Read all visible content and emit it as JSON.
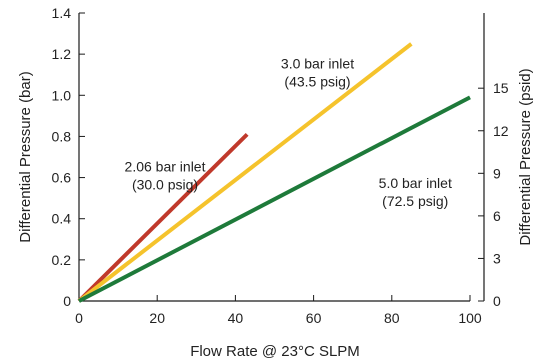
{
  "chart_data": {
    "type": "line",
    "xlabel": "Flow Rate @ 23°C SLPM",
    "ylabel": "Differential Pressure (bar)",
    "y2label": "Differential Pressure (psid)",
    "xlim": [
      0,
      100
    ],
    "ylim": [
      0,
      1.4
    ],
    "y2lim": [
      0,
      20.3
    ],
    "x_ticks": [
      "0",
      "20",
      "40",
      "60",
      "80",
      "100"
    ],
    "x_tick_values": [
      0,
      20,
      40,
      60,
      80,
      100
    ],
    "y_ticks": [
      "0",
      "0.2",
      "0.4",
      "0.6",
      "0.8",
      "1.0",
      "1.2",
      "1.4"
    ],
    "y_tick_values": [
      0,
      0.2,
      0.4,
      0.6,
      0.8,
      1.0,
      1.2,
      1.4
    ],
    "y2_ticks": [
      "0",
      "3",
      "6",
      "9",
      "12",
      "15"
    ],
    "y2_tick_values": [
      0,
      3,
      6,
      9,
      12,
      15
    ],
    "grid": false,
    "series": [
      {
        "color": "#c0392b",
        "x": [
          0,
          43
        ],
        "y": [
          0,
          0.81
        ],
        "label_lines": [
          "2.06 bar inlet",
          "(30.0 psig)"
        ],
        "label_anchor": [
          22,
          0.63
        ]
      },
      {
        "color": "#f5c32c",
        "x": [
          0,
          85
        ],
        "y": [
          0,
          1.25
        ],
        "label_lines": [
          "3.0 bar inlet",
          "(43.5 psig)"
        ],
        "label_anchor": [
          61,
          1.13
        ]
      },
      {
        "color": "#1e7a3a",
        "x": [
          0,
          100
        ],
        "y": [
          0,
          0.99
        ],
        "label_lines": [
          "5.0 bar inlet",
          "(72.5 psig)"
        ],
        "label_anchor": [
          86,
          0.55
        ]
      }
    ]
  }
}
